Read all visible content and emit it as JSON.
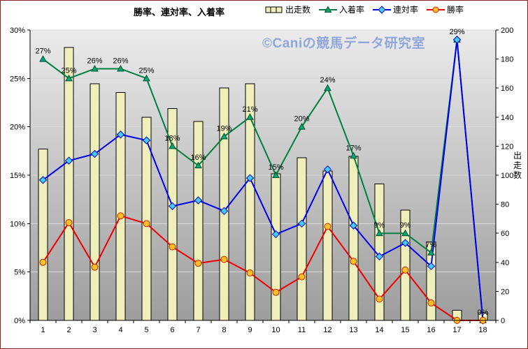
{
  "watermark": "©Caniの競馬データ研究室",
  "chart_data": {
    "type": "combo-bar-line",
    "title": "勝率、連対率、入着率",
    "categories": [
      "1",
      "2",
      "3",
      "4",
      "5",
      "6",
      "7",
      "8",
      "9",
      "10",
      "11",
      "12",
      "13",
      "14",
      "15",
      "16",
      "17",
      "18"
    ],
    "bar_series": {
      "name": "出走数",
      "axis": "right",
      "values": [
        118,
        188,
        163,
        157,
        140,
        146,
        137,
        160,
        163,
        101,
        112,
        103,
        113,
        94,
        76,
        54,
        7,
        5
      ]
    },
    "line_series": [
      {
        "name": "入着率",
        "axis": "left",
        "marker": "triangle",
        "values": [
          27,
          25,
          26,
          26,
          25,
          18,
          16,
          19,
          21,
          15,
          20,
          24,
          17,
          9,
          9,
          7,
          29,
          0
        ]
      },
      {
        "name": "連対率",
        "axis": "left",
        "marker": "diamond",
        "values": [
          14.5,
          16.5,
          17.2,
          19.2,
          18.6,
          11.8,
          12.4,
          11.3,
          14.7,
          8.9,
          10,
          15.6,
          9.8,
          6.6,
          8,
          5.6,
          29,
          0
        ]
      },
      {
        "name": "勝率",
        "axis": "left",
        "marker": "circle",
        "values": [
          6,
          10.1,
          5.5,
          10.8,
          10,
          7.6,
          5.9,
          6.3,
          4.9,
          2.9,
          4.5,
          9.7,
          6.1,
          2.2,
          5.2,
          1.8,
          0,
          0
        ]
      }
    ],
    "point_labels": [
      "27%",
      "25%",
      "26%",
      "26%",
      "25%",
      "18%",
      "16%",
      "19%",
      "21%",
      "15%",
      "20%",
      "24%",
      "17%",
      "9%",
      "9%",
      "7%",
      "29%",
      "0%"
    ],
    "left_axis": {
      "min": 0,
      "max": 30,
      "step": 5,
      "ticks": [
        "0%",
        "5%",
        "10%",
        "15%",
        "20%",
        "25%",
        "30%"
      ]
    },
    "right_axis": {
      "min": 0,
      "max": 200,
      "step": 20,
      "label": "出走数",
      "ticks": [
        "0",
        "20",
        "40",
        "60",
        "80",
        "100",
        "120",
        "140",
        "160",
        "180",
        "200"
      ]
    },
    "legend_position": "top",
    "grid": true
  },
  "colors": {
    "frame_border": "#8b2020",
    "plot_bg_top": "#ebebeb",
    "plot_bg_bottom": "#9d9d9d",
    "gridline": "#d9d9d9",
    "bar_fill": "#efefbc",
    "bar_stroke": "#000000",
    "placing_line": "#008040",
    "quinella_line": "#0000ee",
    "win_line": "#ee0000",
    "triangle_fill": "#00a878",
    "triangle_stroke": "#005030",
    "diamond_fill": "#40ccff",
    "diamond_stroke": "#0000cc",
    "circle_fill": "#ffc125",
    "circle_stroke": "#cc2000",
    "watermark": "#92a7d9",
    "label_text": "#000000"
  }
}
